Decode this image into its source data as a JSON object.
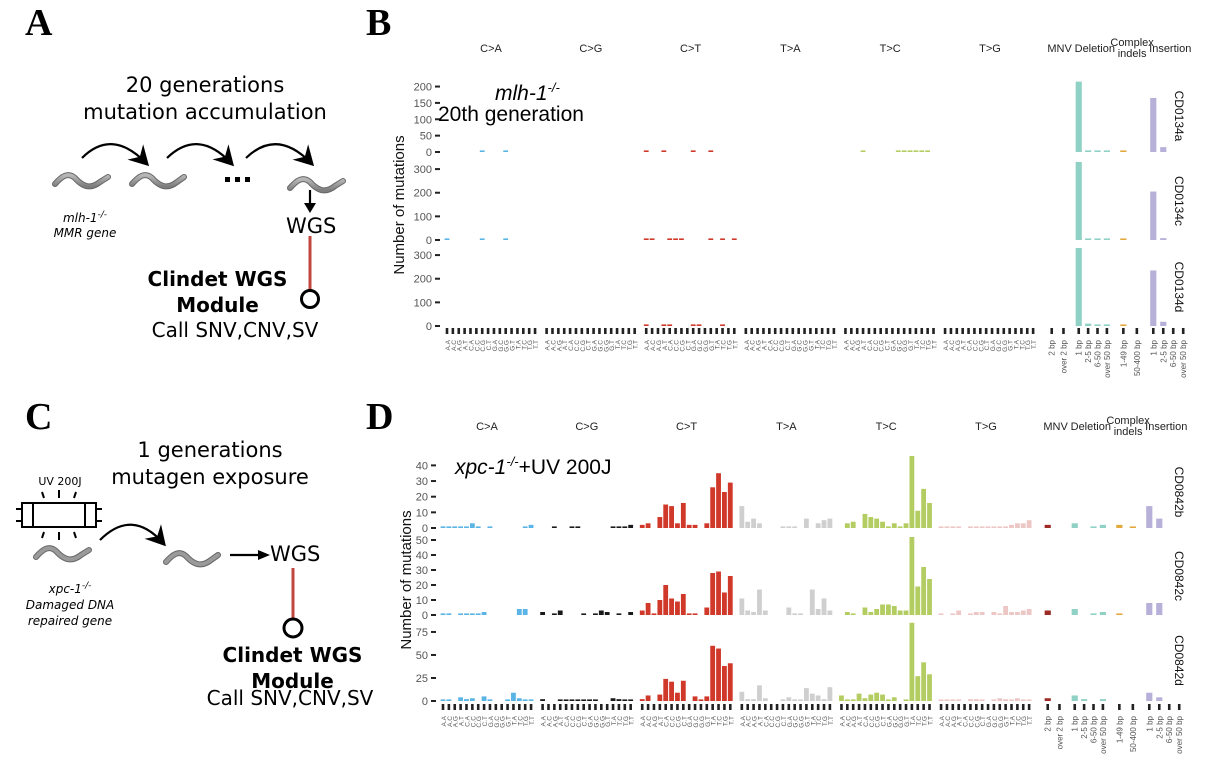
{
  "panels": {
    "A": {
      "letter": "A",
      "title_line1": "20 generations",
      "title_line2": "mutation  accumulation",
      "strain_line1": "mlh-1",
      "strain_sup": "-/-",
      "strain_line2": "MMR gene",
      "ellipsis": "...",
      "wgs": "WGS",
      "module_line1": "Clindet WGS",
      "module_line2": "Module",
      "call": "Call SNV,CNV,SV",
      "icons": [
        "worm-icon",
        "curved-arrow-icon",
        "down-arrow-icon",
        "pin-circle-icon"
      ]
    },
    "B": {
      "letter": "B"
    },
    "C": {
      "letter": "C",
      "title_line1": "1 generations",
      "title_line2": "mutagen  exposure",
      "uv_label": "UV 200J",
      "uv_lamp_text": "UV",
      "strain_line1": "xpc-1",
      "strain_sup": "-/-",
      "strain_line2": "Damaged DNA",
      "strain_line3": "repaired gene",
      "wgs": "WGS",
      "module_line1": "Clindet WGS",
      "module_line2": "Module",
      "call": "Call SNV,CNV,SV",
      "icons": [
        "uv-lamp-icon",
        "worm-icon",
        "curved-arrow-icon",
        "right-arrow-icon",
        "pin-circle-icon"
      ]
    },
    "D": {
      "letter": "D"
    }
  },
  "colors": {
    "C>A": "#5ab4e5",
    "C>G": "#1a1a1a",
    "C>T": "#d0382a",
    "T>A": "#cfcfcf",
    "T>C": "#b3cd62",
    "T>G": "#ecc7c5",
    "MNV": "#9c2a25",
    "Deletion": "#8fd1c4",
    "Complex indels": "#e2a93b",
    "Insertion": "#b7b1d9",
    "pin_line": "#c0463e",
    "axis_text": "#555555",
    "tick": "#222222"
  },
  "chart_data": [
    {
      "type": "bar",
      "id": "B",
      "title": "mlh-1 -/- 20th generation",
      "annotation_line1": "mlh-1",
      "annotation_sup": "-/-",
      "annotation_line2": "20th generation",
      "ylabel": "Number of mutations",
      "xlabel": "",
      "grid": false,
      "group_labels": [
        "C>A",
        "C>G",
        "C>T",
        "T>A",
        "T>C",
        "T>G",
        "MNV",
        "Deletion",
        "Complex indels",
        "Insertion"
      ],
      "group_labels_display": [
        "C>A",
        "C>G",
        "C>T",
        "T>A",
        "T>C",
        "T>G",
        "MNV",
        "Deletion",
        "Complex\nindels",
        "Insertion"
      ],
      "snv_contexts": [
        "A.A",
        "A.C",
        "A.G",
        "A.T",
        "C.A",
        "C.C",
        "C.G",
        "C.T",
        "G.A",
        "G.C",
        "G.G",
        "G.T",
        "T.A",
        "T.C",
        "T.G",
        "T.T"
      ],
      "indel_categories": {
        "MNV": [
          "2 bp",
          "over 2 bp"
        ],
        "Deletion": [
          "1 bp",
          "2-5 bp",
          "6-50 bp",
          "over 50 bp"
        ],
        "Complex indels": [
          "1-49 bp",
          "50-400 bp"
        ],
        "Insertion": [
          "1 bp",
          "2-5 bp",
          "6-50 bp",
          "over 50 bp"
        ]
      },
      "facets": [
        {
          "sample": "CD0134a",
          "ylim": [
            0,
            220
          ],
          "yticks": [
            0,
            50,
            100,
            150,
            200
          ],
          "values": {
            "C>A": [
              0,
              0,
              0,
              0,
              0,
              0,
              1,
              0,
              0,
              0,
              1,
              0,
              0,
              0,
              0,
              0
            ],
            "C>G": [
              0,
              0,
              0,
              0,
              0,
              0,
              0,
              0,
              0,
              0,
              0,
              0,
              0,
              0,
              0,
              0
            ],
            "C>T": [
              1,
              0,
              0,
              1,
              0,
              0,
              0,
              0,
              1,
              0,
              0,
              1,
              0,
              0,
              0,
              0
            ],
            "T>A": [
              0,
              0,
              0,
              0,
              0,
              0,
              0,
              0,
              0,
              0,
              0,
              0,
              0,
              0,
              0,
              0
            ],
            "T>C": [
              0,
              0,
              0,
              1,
              0,
              0,
              0,
              0,
              0,
              1,
              1,
              1,
              1,
              1,
              1,
              0
            ],
            "T>G": [
              0,
              0,
              0,
              0,
              0,
              0,
              0,
              0,
              0,
              0,
              0,
              0,
              0,
              0,
              0,
              0
            ],
            "MNV": [
              0,
              0
            ],
            "Deletion": [
              215,
              5,
              5,
              1
            ],
            "Complex indels": [
              4,
              0
            ],
            "Insertion": [
              165,
              15,
              0,
              0
            ]
          }
        },
        {
          "sample": "CD0134c",
          "ylim": [
            0,
            330
          ],
          "yticks": [
            0,
            100,
            200,
            300
          ],
          "values": {
            "C>A": [
              1,
              0,
              0,
              0,
              0,
              0,
              1,
              0,
              0,
              0,
              1,
              0,
              0,
              0,
              0,
              0
            ],
            "C>G": [
              0,
              0,
              0,
              0,
              0,
              0,
              0,
              0,
              0,
              0,
              0,
              0,
              0,
              0,
              0,
              0
            ],
            "C>T": [
              2,
              2,
              0,
              0,
              1,
              2,
              2,
              0,
              0,
              0,
              0,
              1,
              0,
              1,
              0,
              2
            ],
            "T>A": [
              0,
              0,
              0,
              0,
              0,
              0,
              0,
              0,
              0,
              0,
              0,
              0,
              0,
              0,
              0,
              0
            ],
            "T>C": [
              0,
              0,
              0,
              0,
              0,
              0,
              0,
              0,
              0,
              0,
              0,
              0,
              0,
              0,
              0,
              0
            ],
            "T>G": [
              0,
              0,
              0,
              0,
              0,
              0,
              0,
              0,
              0,
              0,
              0,
              0,
              0,
              0,
              0,
              0
            ],
            "MNV": [
              0,
              0
            ],
            "Deletion": [
              330,
              6,
              3,
              2
            ],
            "Complex indels": [
              3,
              0
            ],
            "Insertion": [
              205,
              8,
              0,
              0
            ]
          }
        },
        {
          "sample": "CD0134d",
          "ylim": [
            0,
            330
          ],
          "yticks": [
            0,
            100,
            200,
            300
          ],
          "values": {
            "C>A": [
              0,
              0,
              0,
              0,
              0,
              0,
              0,
              0,
              0,
              0,
              0,
              0,
              0,
              0,
              0,
              0
            ],
            "C>G": [
              0,
              0,
              0,
              0,
              0,
              0,
              0,
              0,
              0,
              0,
              0,
              0,
              0,
              0,
              0,
              0
            ],
            "C>T": [
              2,
              0,
              0,
              1,
              1,
              0,
              0,
              0,
              1,
              1,
              0,
              0,
              0,
              2,
              0,
              0
            ],
            "T>A": [
              0,
              0,
              0,
              0,
              0,
              0,
              0,
              0,
              0,
              0,
              0,
              0,
              0,
              0,
              0,
              0
            ],
            "T>C": [
              0,
              0,
              0,
              0,
              0,
              0,
              0,
              0,
              0,
              0,
              0,
              0,
              0,
              0,
              0,
              0
            ],
            "T>G": [
              0,
              0,
              0,
              0,
              0,
              0,
              0,
              0,
              0,
              0,
              0,
              0,
              0,
              0,
              0,
              0
            ],
            "MNV": [
              0,
              0
            ],
            "Deletion": [
              330,
              10,
              5,
              1
            ],
            "Complex indels": [
              6,
              0
            ],
            "Insertion": [
              235,
              18,
              0,
              0
            ]
          }
        }
      ]
    },
    {
      "type": "bar",
      "id": "D",
      "title": "xpc-1 -/- +UV 200J",
      "annotation_line1": "xpc-1",
      "annotation_sup": "-/-",
      "annotation_suffix": "+UV 200J",
      "ylabel": "Number of mutations",
      "xlabel": "",
      "grid": false,
      "group_labels": [
        "C>A",
        "C>G",
        "C>T",
        "T>A",
        "T>C",
        "T>G",
        "MNV",
        "Deletion",
        "Complex indels",
        "Insertion"
      ],
      "group_labels_display": [
        "C>A",
        "C>G",
        "C>T",
        "T>A",
        "T>C",
        "T>G",
        "MNV",
        "Deletion",
        "Complex\nindels",
        "Insertion"
      ],
      "snv_contexts": [
        "A.A",
        "A.C",
        "A.G",
        "A.T",
        "C.A",
        "C.C",
        "C.G",
        "C.T",
        "G.A",
        "G.C",
        "G.G",
        "G.T",
        "T.A",
        "T.C",
        "T.G",
        "T.T"
      ],
      "indel_categories": {
        "MNV": [
          "2 bp",
          "over 2 bp"
        ],
        "Deletion": [
          "1 bp",
          "2-5 bp",
          "6-50 bp",
          "over 50 bp"
        ],
        "Complex indels": [
          "1-49 bp",
          "50-400 bp"
        ],
        "Insertion": [
          "1 bp",
          "2-5 bp",
          "6-50 bp",
          "over 50 bp"
        ]
      },
      "facets": [
        {
          "sample": "CD0842b",
          "ylim": [
            0,
            46
          ],
          "yticks": [
            0,
            10,
            20,
            30,
            40
          ],
          "values": {
            "C>A": [
              1,
              1,
              1,
              1,
              1,
              3,
              1,
              0,
              1,
              0,
              0,
              0,
              0,
              0,
              1,
              2
            ],
            "C>G": [
              0,
              0,
              1,
              0,
              0,
              1,
              1,
              0,
              0,
              0,
              0,
              0,
              1,
              1,
              1,
              2
            ],
            "C>T": [
              2,
              3,
              0,
              7,
              15,
              14,
              3,
              16,
              2,
              2,
              0,
              3,
              26,
              35,
              23,
              29
            ],
            "T>A": [
              14,
              4,
              6,
              3,
              0,
              0,
              0,
              1,
              1,
              1,
              0,
              6,
              0,
              3,
              5,
              6
            ],
            "T>C": [
              0,
              3,
              4,
              0,
              9,
              7,
              6,
              4,
              1,
              3,
              1,
              3,
              46,
              11,
              25,
              16
            ],
            "T>G": [
              1,
              1,
              1,
              1,
              0,
              1,
              1,
              1,
              1,
              1,
              1,
              1,
              2,
              3,
              3,
              5
            ],
            "MNV": [
              2,
              0
            ],
            "Deletion": [
              3,
              0,
              1,
              2
            ],
            "Complex indels": [
              2,
              1
            ],
            "Insertion": [
              14,
              6,
              0,
              0
            ]
          }
        },
        {
          "sample": "CD0842c",
          "ylim": [
            0,
            52
          ],
          "yticks": [
            0,
            10,
            20,
            30,
            40,
            50
          ],
          "values": {
            "C>A": [
              1,
              1,
              0,
              1,
              1,
              1,
              1,
              2,
              0,
              0,
              0,
              0,
              0,
              4,
              4,
              0
            ],
            "C>G": [
              2,
              0,
              1,
              3,
              0,
              0,
              0,
              1,
              0,
              1,
              3,
              2,
              0,
              1,
              0,
              2
            ],
            "C>T": [
              3,
              8,
              1,
              10,
              20,
              11,
              9,
              14,
              1,
              1,
              0,
              5,
              28,
              29,
              15,
              26
            ],
            "T>A": [
              11,
              3,
              2,
              17,
              3,
              0,
              0,
              0,
              5,
              1,
              1,
              0,
              17,
              4,
              11,
              3
            ],
            "T>C": [
              0,
              2,
              1,
              0,
              5,
              2,
              4,
              7,
              7,
              6,
              3,
              3,
              52,
              19,
              32,
              24
            ],
            "T>G": [
              1,
              0,
              1,
              3,
              0,
              1,
              2,
              2,
              0,
              2,
              1,
              6,
              2,
              2,
              3,
              4
            ],
            "MNV": [
              3,
              0
            ],
            "Deletion": [
              4,
              0,
              1,
              2
            ],
            "Complex indels": [
              1,
              0
            ],
            "Insertion": [
              8,
              8,
              0,
              0
            ]
          }
        },
        {
          "sample": "CD0842d",
          "ylim": [
            0,
            88
          ],
          "yticks": [
            0,
            25,
            50,
            75
          ],
          "values": {
            "C>A": [
              1,
              1,
              0,
              4,
              2,
              3,
              0,
              5,
              1,
              0,
              0,
              1,
              9,
              3,
              1,
              1
            ],
            "C>G": [
              2,
              0,
              0,
              1,
              1,
              1,
              1,
              1,
              1,
              1,
              0,
              0,
              3,
              2,
              1,
              1
            ],
            "C>T": [
              2,
              6,
              0,
              7,
              24,
              21,
              9,
              22,
              0,
              5,
              1,
              5,
              60,
              57,
              38,
              41
            ],
            "T>A": [
              10,
              2,
              2,
              17,
              3,
              0,
              0,
              1,
              4,
              1,
              1,
              14,
              8,
              6,
              2,
              15
            ],
            "T>C": [
              6,
              1,
              1,
              8,
              3,
              7,
              9,
              7,
              1,
              4,
              0,
              1,
              85,
              27,
              42,
              29
            ],
            "T>G": [
              1,
              1,
              1,
              1,
              0,
              2,
              2,
              1,
              0,
              1,
              3,
              2,
              1,
              3,
              1,
              1
            ],
            "MNV": [
              3,
              0
            ],
            "Deletion": [
              6,
              2,
              0,
              2
            ],
            "Complex indels": [
              0,
              0
            ],
            "Insertion": [
              9,
              4,
              0,
              0
            ]
          }
        }
      ]
    }
  ]
}
